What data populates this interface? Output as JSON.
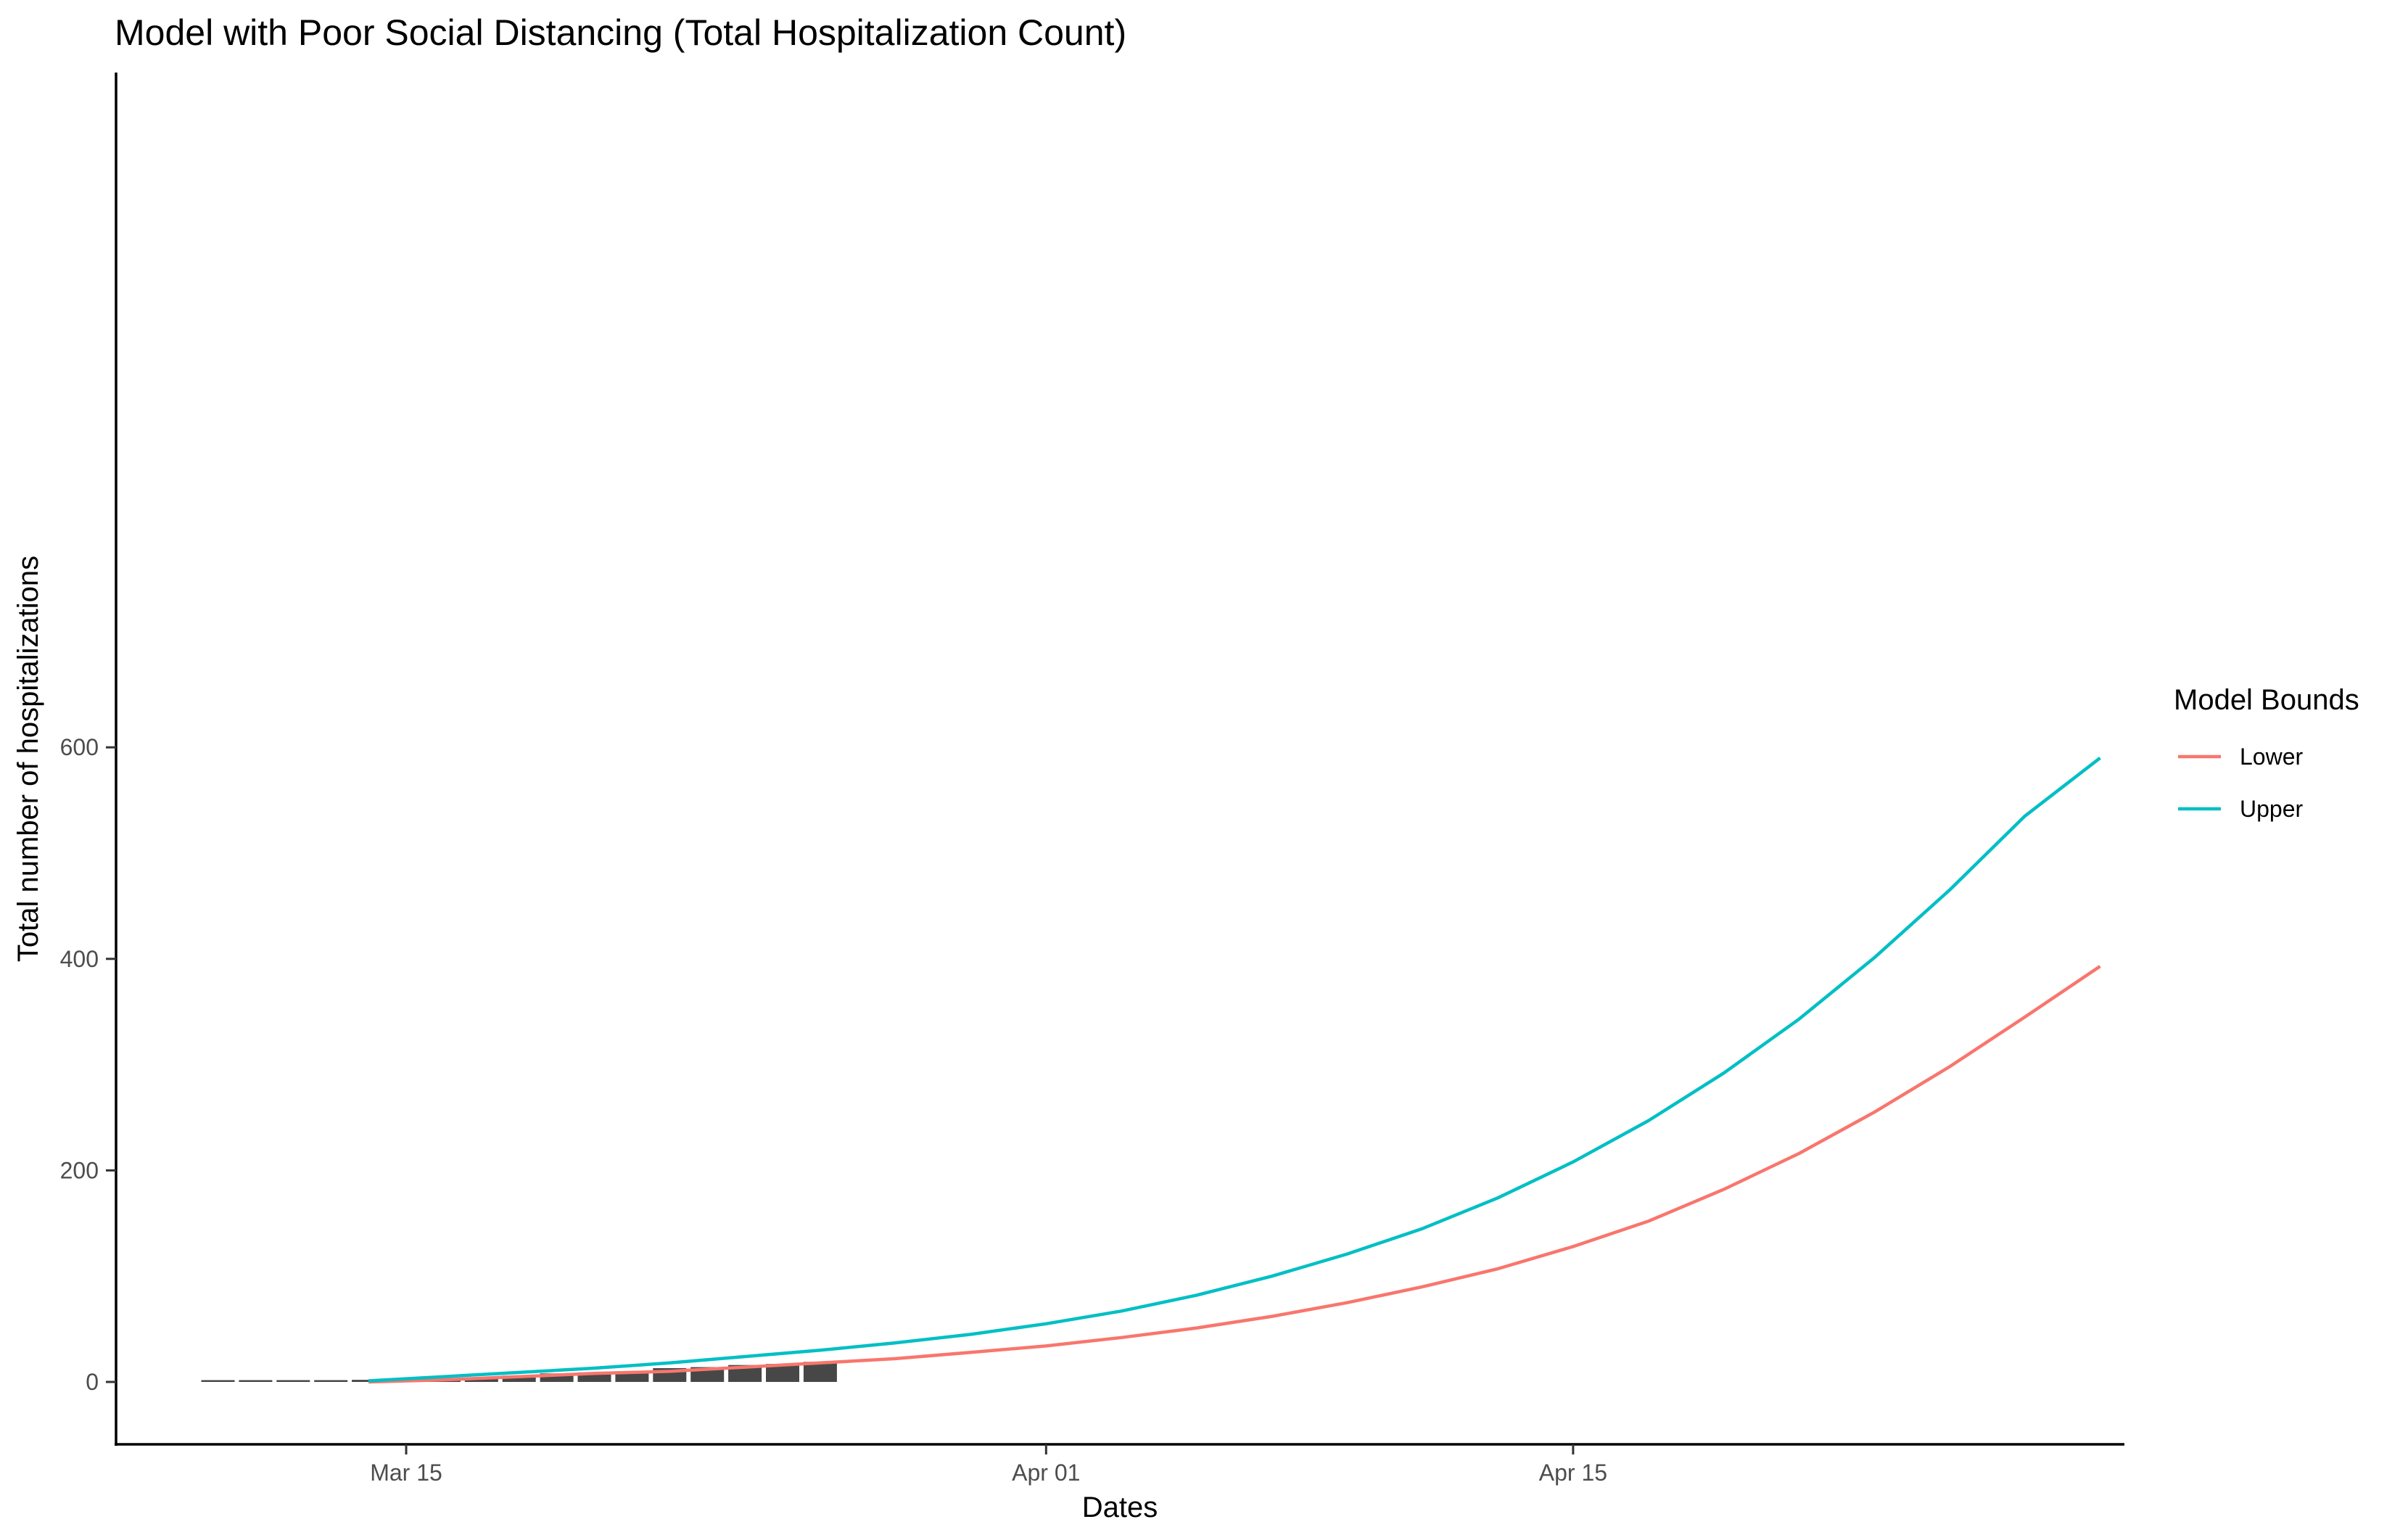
{
  "chart_data": {
    "type": "line",
    "title": "Model with Poor Social Distancing (Total Hospitalization Count)",
    "xlabel": "Dates",
    "ylabel": "Total number of hospitalizations",
    "x_ticks": [
      {
        "date": "2020-03-15",
        "label": "Mar 15"
      },
      {
        "date": "2020-04-01",
        "label": "Apr 01"
      },
      {
        "date": "2020-04-15",
        "label": "Apr 15"
      }
    ],
    "y_ticks": [
      0,
      200,
      400,
      600
    ],
    "xlim": [
      "2020-03-06",
      "2020-05-08"
    ],
    "ylim": [
      -29,
      623
    ],
    "grid": false,
    "legend_position": "right",
    "legend_title": "Model Bounds",
    "bars": {
      "color": "#474747",
      "points": [
        {
          "date": "2020-03-10",
          "value": 0
        },
        {
          "date": "2020-03-11",
          "value": 0
        },
        {
          "date": "2020-03-12",
          "value": 0
        },
        {
          "date": "2020-03-13",
          "value": 0
        },
        {
          "date": "2020-03-14",
          "value": 2
        },
        {
          "date": "2020-03-15",
          "value": 2
        },
        {
          "date": "2020-03-16",
          "value": 3
        },
        {
          "date": "2020-03-17",
          "value": 4
        },
        {
          "date": "2020-03-18",
          "value": 6
        },
        {
          "date": "2020-03-19",
          "value": 8
        },
        {
          "date": "2020-03-20",
          "value": 9
        },
        {
          "date": "2020-03-21",
          "value": 10
        },
        {
          "date": "2020-03-22",
          "value": 13
        },
        {
          "date": "2020-03-23",
          "value": 14
        },
        {
          "date": "2020-03-24",
          "value": 16
        },
        {
          "date": "2020-03-25",
          "value": 17
        },
        {
          "date": "2020-03-26",
          "value": 19
        }
      ]
    },
    "series": [
      {
        "name": "Lower",
        "color": "#F8766D",
        "points": [
          {
            "date": "2020-03-14",
            "value": 0
          },
          {
            "date": "2020-03-16",
            "value": 2
          },
          {
            "date": "2020-03-18",
            "value": 5
          },
          {
            "date": "2020-03-20",
            "value": 8
          },
          {
            "date": "2020-03-22",
            "value": 10
          },
          {
            "date": "2020-03-24",
            "value": 14
          },
          {
            "date": "2020-03-26",
            "value": 18
          },
          {
            "date": "2020-03-28",
            "value": 22
          },
          {
            "date": "2020-03-30",
            "value": 28
          },
          {
            "date": "2020-04-01",
            "value": 34
          },
          {
            "date": "2020-04-03",
            "value": 42
          },
          {
            "date": "2020-04-05",
            "value": 51
          },
          {
            "date": "2020-04-07",
            "value": 62
          },
          {
            "date": "2020-04-09",
            "value": 75
          },
          {
            "date": "2020-04-11",
            "value": 90
          },
          {
            "date": "2020-04-13",
            "value": 107
          },
          {
            "date": "2020-04-15",
            "value": 128
          },
          {
            "date": "2020-04-17",
            "value": 152
          },
          {
            "date": "2020-04-19",
            "value": 182
          },
          {
            "date": "2020-04-21",
            "value": 216
          },
          {
            "date": "2020-04-23",
            "value": 255
          },
          {
            "date": "2020-04-25",
            "value": 298
          },
          {
            "date": "2020-04-27",
            "value": 345
          },
          {
            "date": "2020-04-29",
            "value": 393
          }
        ]
      },
      {
        "name": "Upper",
        "color": "#00BFC4",
        "points": [
          {
            "date": "2020-03-14",
            "value": 1
          },
          {
            "date": "2020-03-16",
            "value": 5
          },
          {
            "date": "2020-03-18",
            "value": 9
          },
          {
            "date": "2020-03-20",
            "value": 13
          },
          {
            "date": "2020-03-22",
            "value": 18
          },
          {
            "date": "2020-03-24",
            "value": 24
          },
          {
            "date": "2020-03-26",
            "value": 30
          },
          {
            "date": "2020-03-28",
            "value": 37
          },
          {
            "date": "2020-03-30",
            "value": 45
          },
          {
            "date": "2020-04-01",
            "value": 55
          },
          {
            "date": "2020-04-03",
            "value": 67
          },
          {
            "date": "2020-04-05",
            "value": 82
          },
          {
            "date": "2020-04-07",
            "value": 100
          },
          {
            "date": "2020-04-09",
            "value": 121
          },
          {
            "date": "2020-04-11",
            "value": 145
          },
          {
            "date": "2020-04-13",
            "value": 174
          },
          {
            "date": "2020-04-15",
            "value": 208
          },
          {
            "date": "2020-04-17",
            "value": 247
          },
          {
            "date": "2020-04-19",
            "value": 292
          },
          {
            "date": "2020-04-21",
            "value": 343
          },
          {
            "date": "2020-04-23",
            "value": 401
          },
          {
            "date": "2020-04-25",
            "value": 465
          },
          {
            "date": "2020-04-27",
            "value": 535
          },
          {
            "date": "2020-04-29",
            "value": 590
          }
        ]
      }
    ]
  }
}
